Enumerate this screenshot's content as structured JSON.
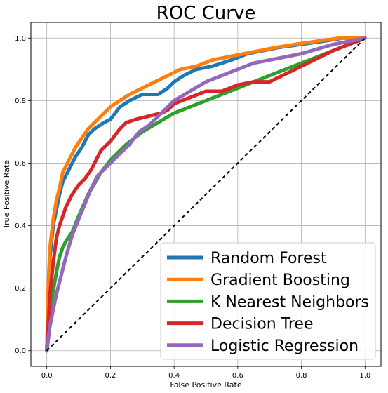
{
  "chart_data": {
    "type": "line",
    "title": "ROC Curve",
    "xlabel": "False Positive Rate",
    "ylabel": "True Positive Rate",
    "xlim": [
      -0.05,
      1.05
    ],
    "ylim": [
      -0.05,
      1.05
    ],
    "xticks": [
      "0.0",
      "0.2",
      "0.4",
      "0.6",
      "0.8",
      "1.0"
    ],
    "yticks": [
      "0.0",
      "0.2",
      "0.4",
      "0.6",
      "0.8",
      "1.0"
    ],
    "grid": true,
    "legend_position": "lower-right",
    "baseline": {
      "x": [
        0,
        1
      ],
      "y": [
        0,
        1
      ],
      "color": "#000000",
      "style": "dashed"
    },
    "series": [
      {
        "name": "Random Forest",
        "color": "#1f77b4",
        "x": [
          0,
          0.005,
          0.01,
          0.02,
          0.03,
          0.04,
          0.05,
          0.07,
          0.09,
          0.11,
          0.13,
          0.15,
          0.18,
          0.2,
          0.23,
          0.26,
          0.3,
          0.35,
          0.38,
          0.4,
          0.43,
          0.47,
          0.52,
          0.58,
          0.63,
          0.68,
          0.73,
          0.8,
          0.87,
          0.93,
          1.0
        ],
        "y": [
          0,
          0.18,
          0.3,
          0.4,
          0.45,
          0.5,
          0.54,
          0.58,
          0.62,
          0.65,
          0.69,
          0.71,
          0.73,
          0.74,
          0.78,
          0.8,
          0.82,
          0.82,
          0.84,
          0.86,
          0.88,
          0.9,
          0.91,
          0.93,
          0.95,
          0.96,
          0.97,
          0.98,
          0.99,
          1.0,
          1.0
        ]
      },
      {
        "name": "Gradient Boosting",
        "color": "#ff7f0e",
        "x": [
          0,
          0.005,
          0.01,
          0.02,
          0.03,
          0.04,
          0.05,
          0.07,
          0.09,
          0.11,
          0.13,
          0.15,
          0.18,
          0.2,
          0.23,
          0.26,
          0.3,
          0.34,
          0.38,
          0.42,
          0.47,
          0.52,
          0.57,
          0.62,
          0.67,
          0.72,
          0.78,
          0.85,
          0.92,
          1.0
        ],
        "y": [
          0,
          0.22,
          0.33,
          0.42,
          0.48,
          0.52,
          0.57,
          0.61,
          0.65,
          0.68,
          0.71,
          0.73,
          0.76,
          0.78,
          0.8,
          0.82,
          0.84,
          0.86,
          0.88,
          0.9,
          0.91,
          0.93,
          0.94,
          0.95,
          0.96,
          0.97,
          0.98,
          0.99,
          1.0,
          1.0
        ]
      },
      {
        "name": "K Nearest Neighbors",
        "color": "#2ca02c",
        "x": [
          0,
          0.005,
          0.01,
          0.02,
          0.03,
          0.04,
          0.05,
          0.06,
          0.08,
          0.1,
          0.13,
          0.17,
          0.2,
          0.25,
          0.3,
          0.35,
          0.4,
          0.5,
          0.6,
          0.7,
          0.8,
          0.9,
          1.0
        ],
        "y": [
          0,
          0.06,
          0.12,
          0.19,
          0.25,
          0.3,
          0.33,
          0.35,
          0.38,
          0.43,
          0.5,
          0.57,
          0.61,
          0.66,
          0.7,
          0.73,
          0.76,
          0.8,
          0.84,
          0.88,
          0.92,
          0.96,
          1.0
        ]
      },
      {
        "name": "Decision Tree",
        "color": "#d62728",
        "x": [
          0,
          0.01,
          0.02,
          0.03,
          0.04,
          0.05,
          0.06,
          0.07,
          0.08,
          0.1,
          0.12,
          0.14,
          0.15,
          0.17,
          0.18,
          0.2,
          0.23,
          0.25,
          0.28,
          0.32,
          0.36,
          0.38,
          0.4,
          0.45,
          0.5,
          0.55,
          0.6,
          0.65,
          0.7,
          0.8,
          0.9,
          1.0
        ],
        "y": [
          0,
          0.18,
          0.28,
          0.36,
          0.4,
          0.43,
          0.46,
          0.48,
          0.5,
          0.53,
          0.55,
          0.58,
          0.6,
          0.64,
          0.65,
          0.67,
          0.71,
          0.73,
          0.74,
          0.75,
          0.76,
          0.77,
          0.79,
          0.81,
          0.83,
          0.83,
          0.85,
          0.86,
          0.86,
          0.91,
          0.96,
          1.0
        ]
      },
      {
        "name": "Logistic Regression",
        "color": "#9467bd",
        "x": [
          0,
          0.01,
          0.02,
          0.03,
          0.04,
          0.05,
          0.06,
          0.08,
          0.1,
          0.12,
          0.14,
          0.16,
          0.18,
          0.2,
          0.23,
          0.26,
          0.29,
          0.32,
          0.35,
          0.38,
          0.4,
          0.45,
          0.5,
          0.55,
          0.6,
          0.65,
          0.7,
          0.8,
          0.9,
          1.0
        ],
        "y": [
          0,
          0.08,
          0.13,
          0.18,
          0.22,
          0.26,
          0.3,
          0.37,
          0.42,
          0.47,
          0.52,
          0.56,
          0.58,
          0.6,
          0.63,
          0.66,
          0.7,
          0.72,
          0.75,
          0.78,
          0.8,
          0.83,
          0.86,
          0.88,
          0.9,
          0.92,
          0.93,
          0.95,
          0.98,
          1.0
        ]
      }
    ]
  }
}
